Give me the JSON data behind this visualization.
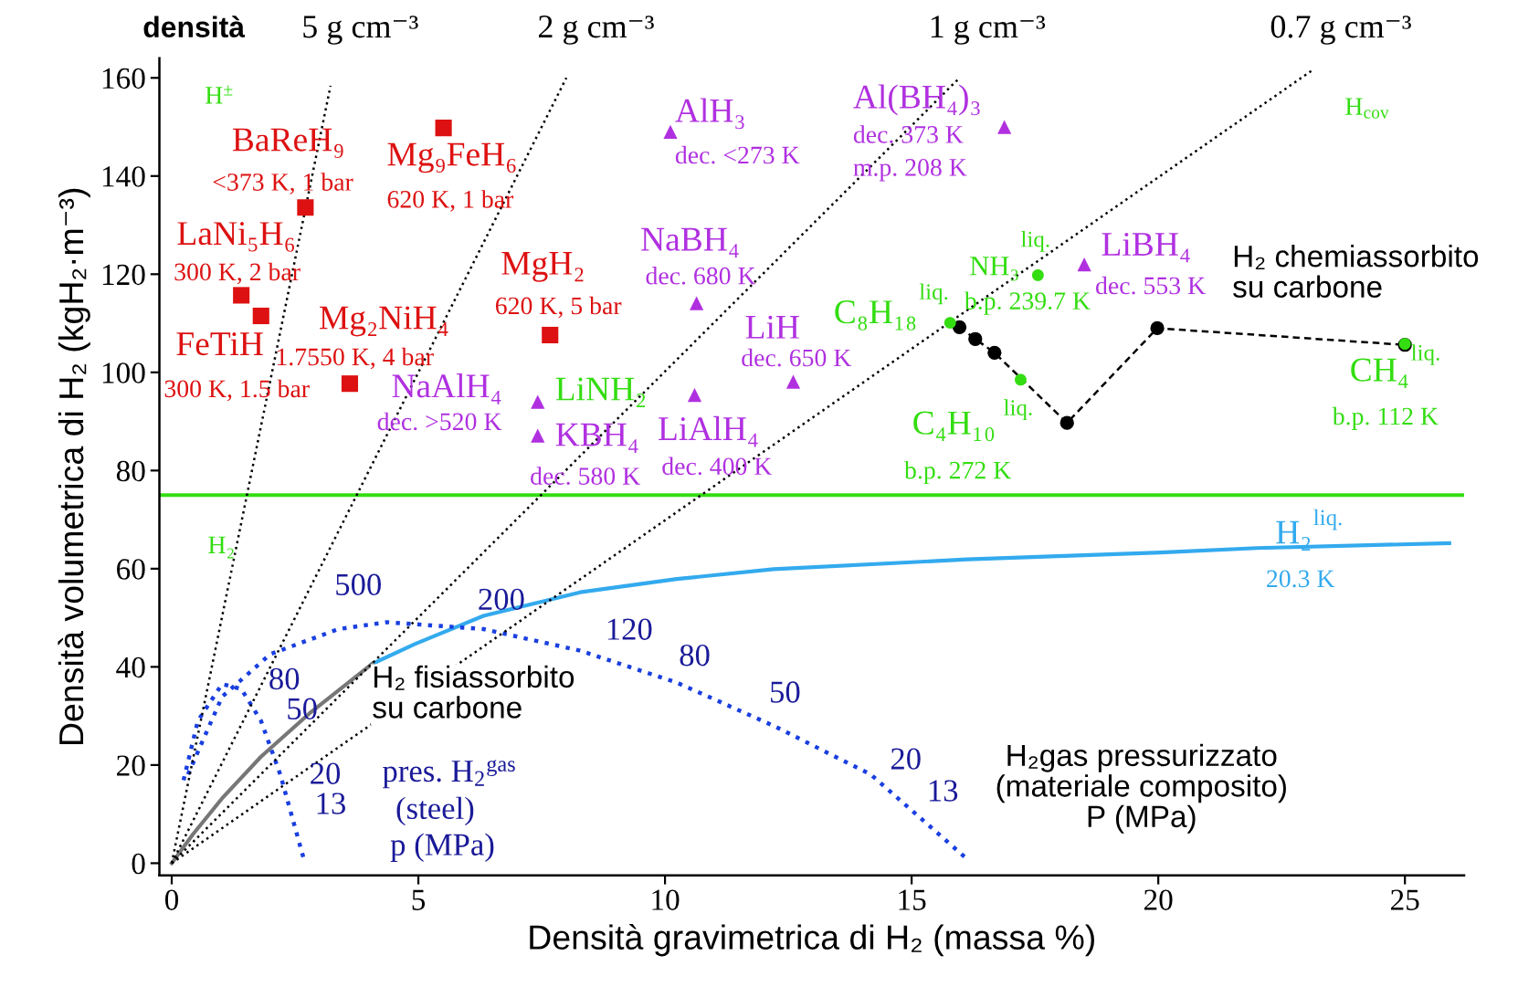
{
  "chart_data": {
    "type": "scatter",
    "xlabel": "Densità gravimetrica di H₂ (massa %)",
    "ylabel": "Densità volumetrica di H₂ (kgH₂·m⁻³)",
    "xlim": [
      -0.25,
      26.2
    ],
    "ylim": [
      -2.5,
      164
    ],
    "xticks": [
      0,
      5,
      10,
      15,
      20,
      25
    ],
    "yticks": [
      0,
      20,
      40,
      60,
      80,
      100,
      120,
      140,
      160
    ],
    "series": [
      {
        "marker": "square",
        "color": "#dd1111",
        "x": [
          2.71,
          5.51,
          1.41,
          1.81,
          7.67,
          3.61
        ],
        "values": [
          133.6,
          149.8,
          115.7,
          111.5,
          107.6,
          97.7
        ]
      },
      {
        "marker": "triangle",
        "color": "#b030e0",
        "x": [
          10.11,
          16.88,
          10.64,
          12.6,
          10.6,
          7.42,
          7.42,
          18.5
        ],
        "values": [
          149,
          150,
          114.1,
          98.1,
          95.4,
          94,
          87.1,
          122
        ]
      },
      {
        "marker": "circle",
        "color": "#33dd11",
        "x": [
          17.56,
          15.78,
          17.21,
          25.0
        ],
        "values": [
          119.8,
          110.1,
          98.5,
          105.8
        ]
      },
      {
        "type": "line",
        "marker": "circle",
        "line_style": "dashed",
        "color": "#000000",
        "x": [
          15.97,
          16.29,
          16.68,
          18.15,
          19.98,
          25.0
        ],
        "values": [
          109.2,
          106.8,
          104.0,
          89.7,
          109.0,
          105.6
        ]
      },
      {
        "type": "line",
        "line_style": "solid",
        "color": "#33aaee",
        "x": [
          4.06,
          4.94,
          6.32,
          8.28,
          10.24,
          12.2,
          16.13,
          20.05,
          22.0,
          25.9
        ],
        "values": [
          40.6,
          44.7,
          50.4,
          55.2,
          57.9,
          59.9,
          61.9,
          63.3,
          64.2,
          65.2
        ]
      },
      {
        "type": "line",
        "line_style": "solid",
        "color": "#777777",
        "x": [
          0,
          0.43,
          1.02,
          1.81,
          2.79,
          4.06
        ],
        "values": [
          0,
          5.9,
          13.2,
          21.7,
          30.5,
          40.6
        ]
      },
      {
        "type": "line",
        "line_style": "dotted",
        "color": "#1a3fe0",
        "x": [
          0.24,
          0.53,
          1.02,
          1.41,
          1.81,
          2.2,
          2.69
        ],
        "values": [
          16.9,
          29,
          36.5,
          35.5,
          29,
          18.1,
          0.4
        ]
      },
      {
        "type": "line",
        "line_style": "dotted",
        "color": "#1a3fe0",
        "x": [
          0.33,
          1.02,
          2.0,
          3.38,
          4.36,
          6.32,
          8.28,
          10.24,
          12.2,
          14.17,
          16.13
        ],
        "values": [
          18.1,
          33.9,
          42.6,
          47.7,
          49.1,
          47.7,
          43.3,
          36.8,
          28,
          18.1,
          0.8
        ]
      },
      {
        "type": "line",
        "line_style": "dotted",
        "color": "#000000",
        "name": "5 g cm⁻³",
        "x": [
          0,
          3.22
        ],
        "values": [
          0,
          158.4
        ]
      },
      {
        "type": "line",
        "line_style": "dotted",
        "color": "#000000",
        "name": "2 g cm⁻³",
        "x": [
          0,
          8.0
        ],
        "values": [
          0,
          160
        ]
      },
      {
        "type": "line",
        "line_style": "dotted",
        "color": "#000000",
        "name": "1 g cm⁻³",
        "x": [
          0,
          15.93
        ],
        "values": [
          0,
          159.6
        ]
      },
      {
        "type": "line",
        "line_style": "dotted",
        "color": "#000000",
        "name": "0.7 g cm⁻³",
        "x": [
          0,
          23.1
        ],
        "values": [
          0,
          161.4
        ]
      }
    ],
    "ref_lines": [
      {
        "axis": "y",
        "value": 75,
        "color": "#33dd11"
      }
    ],
    "annotations": [
      "densità",
      "BaReH₉",
      "<373 K, 1 bar",
      "Mg₉FeH₆",
      "620 K, 1 bar",
      "LaNi₅H₆",
      "300 K, 2 bar",
      "FeTiH",
      "1.7550 K, 4 bar",
      "300 K, 1.5 bar",
      "Mg₂NiH₄",
      "MgH₂",
      "620 K, 5 bar",
      "AlH₃",
      "dec. <273 K",
      "Al(BH₄)₃",
      "dec. 373 K",
      "m.p. 208 K",
      "NaBH₄",
      "dec. 680 K",
      "LiH",
      "dec. 650 K",
      "NaAlH₄",
      "dec. >520 K",
      "KBH₄",
      "dec. 580 K",
      "LiAlH₄",
      "dec. 400 K",
      "LiBH₄",
      "dec. 553 K",
      "H$^{±}$",
      "H$_{cov}$",
      "H₂",
      "LiNH₂",
      "NH₃",
      "liq.",
      "b.p. 239.7 K",
      "liq.",
      "C₈H₁₈",
      "C₄H₁₀",
      "liq.",
      "b.p. 272 K",
      "CH₄",
      "liq.",
      "b.p. 112 K",
      "H₂",
      "liq.",
      "20.3 K",
      "500",
      "200",
      "120",
      "80",
      "50",
      "20",
      "13",
      "80",
      "50",
      "20",
      "13",
      "pres. H$_{2}$$^{gas}$",
      "(steel)",
      "p (MPa)",
      "H₂ fisiassorbito\nsu carbone",
      "H₂ chemiassorbito\nsu carbone",
      "H₂gas pressurizzato\n(materiale composito)\nP (MPa)"
    ]
  }
}
